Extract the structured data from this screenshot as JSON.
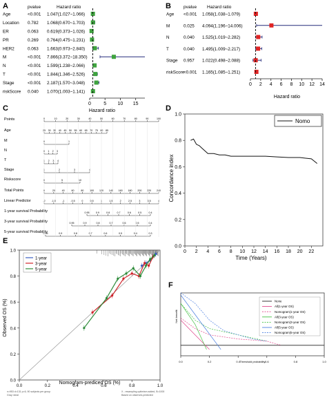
{
  "panels": {
    "A": {
      "letter": "A",
      "col_pvalue": "pvalue",
      "col_hr": "Hazard ratio",
      "rows": [
        {
          "name": "Age",
          "p": "<0.001",
          "hr": "1.047(1.027~1.066)"
        },
        {
          "name": "Location",
          "p": "0.782",
          "hr": "1.068(0.670~1.703)"
        },
        {
          "name": "ER",
          "p": "0.063",
          "hr": "0.619(0.373~1.026)"
        },
        {
          "name": "PR",
          "p": "0.269",
          "hr": "0.764(0.475~1.231)"
        },
        {
          "name": "HER2",
          "p": "0.063",
          "hr": "1.663(0.973~2.840)"
        },
        {
          "name": "M",
          "p": "<0.001",
          "hr": "7.866(3.372~18.350)"
        },
        {
          "name": "N",
          "p": "<0.001",
          "hr": "1.599(1.238~2.066)"
        },
        {
          "name": "T",
          "p": "<0.001",
          "hr": "1.844(1.346~2.526)"
        },
        {
          "name": "Stage",
          "p": "<0.001",
          "hr": "2.187(1.570~3.048)"
        },
        {
          "name": "riskScore",
          "p": "0.040",
          "hr": "1.070(1.003~1.141)"
        }
      ],
      "ticks": [
        "0",
        "5",
        "10",
        "15"
      ],
      "box_color": "#3fa33f"
    },
    "B": {
      "letter": "B",
      "col_pvalue": "pvalue",
      "col_hr": "Hazard ratio",
      "xlabel": "Hazard ratio",
      "rows": [
        {
          "name": "Age",
          "p": "<0.001",
          "hr": "1.058(1.038~1.079)"
        },
        {
          "name": "M",
          "p": "0.025",
          "hr": "4.094(1.196~14.006)"
        },
        {
          "name": "N",
          "p": "0.040",
          "hr": "1.525(1.019~2.282)"
        },
        {
          "name": "T",
          "p": "0.040",
          "hr": "1.495(1.009~2.217)"
        },
        {
          "name": "Stage",
          "p": "0.957",
          "hr": "1.022(0.498~2.088)"
        },
        {
          "name": "riskScore",
          "p": "<0.001",
          "hr": "1.165(1.085~1.251)"
        }
      ],
      "ticks": [
        "0",
        "2",
        "4",
        "6",
        "8",
        "10",
        "12",
        "14"
      ],
      "box_color": "#e02424"
    },
    "C": {
      "letter": "C",
      "title": "Hazard ratio",
      "rows": [
        "Points",
        "Age",
        "M",
        "N",
        "T",
        "Stage",
        "Riskscore",
        "Total Points",
        "Linear Predictor",
        "1-year survival Probability",
        "3-year survival Probability",
        "5-year survival Probability"
      ],
      "points_ticks": [
        "0",
        "10",
        "20",
        "30",
        "40",
        "50",
        "60",
        "70",
        "80",
        "90",
        "100"
      ],
      "age_ticks": [
        "25",
        "30",
        "35",
        "40",
        "45",
        "50",
        "55",
        "60",
        "65",
        "70",
        "75",
        "80",
        "85"
      ],
      "m_ticks": [
        "0",
        "1"
      ],
      "n_ticks": [
        "0",
        "1",
        "2",
        "3"
      ],
      "t_ticks": [
        "1",
        "2",
        "3",
        "4"
      ],
      "stage_ticks": [
        "1",
        "2",
        "3",
        "4"
      ],
      "risk_ticks": [
        "0",
        "5",
        "10"
      ],
      "total_ticks": [
        "0",
        "20",
        "40",
        "60",
        "80",
        "100",
        "120",
        "140",
        "160",
        "180",
        "200",
        "220",
        "240"
      ],
      "lp_ticks": [
        "-2",
        "-1.5",
        "-1",
        "-0.5",
        "0",
        "0.5",
        "1",
        "1.5",
        "2",
        "2.5",
        "3",
        "3.5",
        "4"
      ],
      "y1_ticks": [
        "0.95",
        "0.9",
        "0.8",
        "0.7",
        "0.6",
        "0.5",
        "0.4"
      ],
      "y3_ticks": [
        "0.95",
        "0.9",
        "0.8",
        "0.7",
        "0.6",
        "0.5",
        "0.4"
      ],
      "y5_ticks": [
        "0.95",
        "0.9",
        "0.8",
        "0.7",
        "0.6",
        "0.5",
        "0.4",
        "0.3"
      ]
    },
    "D": {
      "letter": "D",
      "ylabel": "Concordance index",
      "xlabel": "Time (Years)",
      "legend": "Nomo"
    },
    "E": {
      "letter": "E",
      "ylabel": "Observed OS (%)",
      "xlabel": "Nomogram-prediced OS (%)",
      "legend": [
        "1-year",
        "3-year",
        "5-year"
      ],
      "footer_left": "n=953 d=131 p=6, 90 subjects per group",
      "footer_left2": "Gray: ideal",
      "footer_right": "X - resampling optimism added, B=1000",
      "footer_right2": "Based on observed-predicted",
      "colors": [
        "#3b5fc0",
        "#d0232a",
        "#2e8b3a"
      ]
    },
    "F": {
      "letter": "F",
      "ylabel": "Net benefit",
      "xlabel": "Threshold probability",
      "legend": [
        "None",
        "All(1-year OS)",
        "Nomogram(1-year OS)",
        "All(3-year OS)",
        "Nomogram(3-year OS)",
        "All(5-year OS)",
        "Nomogram(5-year OS)"
      ],
      "legend_colors": [
        "#222222",
        "#e0448a",
        "#e0448a",
        "#44c044",
        "#44c044",
        "#4a7ee0",
        "#4a7ee0"
      ]
    }
  },
  "chart_data": [
    {
      "type": "scatter",
      "title": "",
      "xlabel": "",
      "ylabel": "",
      "categories": [
        "Age",
        "Location",
        "ER",
        "PR",
        "HER2",
        "M",
        "N",
        "T",
        "Stage",
        "riskScore"
      ],
      "series": [
        {
          "values": [
            1.047,
            1.068,
            0.619,
            0.764,
            1.663,
            7.866,
            1.599,
            1.844,
            2.187,
            1.07
          ]
        }
      ],
      "lower": [
        1.027,
        0.67,
        0.373,
        0.475,
        0.973,
        3.372,
        1.238,
        1.346,
        1.57,
        1.003
      ],
      "upper": [
        1.066,
        1.703,
        1.026,
        1.231,
        2.84,
        18.35,
        2.066,
        2.526,
        3.048,
        1.141
      ],
      "xlim": [
        0,
        18
      ]
    },
    {
      "type": "scatter",
      "title": "",
      "xlabel": "Hazard ratio",
      "ylabel": "",
      "categories": [
        "Age",
        "M",
        "N",
        "T",
        "Stage",
        "riskScore"
      ],
      "series": [
        {
          "values": [
            1.058,
            4.094,
            1.525,
            1.495,
            1.022,
            1.165
          ]
        }
      ],
      "lower": [
        1.038,
        1.196,
        1.019,
        1.009,
        0.498,
        1.085
      ],
      "upper": [
        1.079,
        14.006,
        2.282,
        2.217,
        2.088,
        1.251
      ],
      "xlim": [
        0,
        14
      ]
    },
    {
      "type": "line",
      "title": "",
      "xlabel": "Time (Years)",
      "ylabel": "Concordance index",
      "xlim": [
        0,
        24
      ],
      "ylim": [
        0,
        1.0
      ],
      "xticks": [
        "0",
        "2",
        "4",
        "6",
        "8",
        "10",
        "12",
        "14",
        "16",
        "18",
        "20",
        "22"
      ],
      "yticks": [
        "0.0",
        "0.2",
        "0.4",
        "0.6",
        "0.8",
        "1.0"
      ],
      "series": [
        {
          "name": "Nomo",
          "x": [
            1,
            1.5,
            2,
            2.5,
            3,
            3.5,
            4,
            5,
            6,
            7,
            8,
            10,
            12,
            14,
            16,
            18,
            20,
            21,
            22,
            23
          ],
          "y": [
            0.8,
            0.81,
            0.77,
            0.76,
            0.74,
            0.72,
            0.7,
            0.7,
            0.69,
            0.69,
            0.68,
            0.68,
            0.68,
            0.68,
            0.675,
            0.67,
            0.67,
            0.665,
            0.66,
            0.625
          ]
        }
      ]
    },
    {
      "type": "line",
      "title": "",
      "xlabel": "Nomogram-prediced OS (%)",
      "ylabel": "Observed OS (%)",
      "xlim": [
        0,
        1.0
      ],
      "ylim": [
        0,
        1.0
      ],
      "xticks": [
        "0.0",
        "0.2",
        "0.4",
        "0.6",
        "0.8",
        "1.0"
      ],
      "yticks": [
        "0.0",
        "0.2",
        "0.4",
        "0.6",
        "0.8",
        "1.0"
      ],
      "series": [
        {
          "name": "1-year",
          "x": [
            0.87,
            0.9,
            0.93,
            0.95,
            0.96,
            0.97
          ],
          "y": [
            0.88,
            0.9,
            0.92,
            0.95,
            0.96,
            0.97
          ]
        },
        {
          "name": "3-year",
          "x": [
            0.52,
            0.66,
            0.74,
            0.8,
            0.85,
            0.89,
            0.92,
            0.95
          ],
          "y": [
            0.52,
            0.65,
            0.78,
            0.82,
            0.8,
            0.9,
            0.88,
            0.95
          ]
        },
        {
          "name": "5-year",
          "x": [
            0.46,
            0.62,
            0.7,
            0.76,
            0.81,
            0.86,
            0.9,
            0.93,
            0.96
          ],
          "y": [
            0.4,
            0.63,
            0.78,
            0.82,
            0.86,
            0.8,
            0.88,
            0.93,
            0.96
          ]
        }
      ]
    },
    {
      "type": "line",
      "title": "",
      "xlabel": "Threshold probability",
      "ylabel": "Net benefit",
      "xlim": [
        0,
        1.0
      ],
      "ylim": [
        -0.05,
        0.25
      ],
      "xticks": [
        "0.0",
        "0.2",
        "0.4",
        "0.6",
        "0.8",
        "1.0"
      ],
      "series": [
        {
          "name": "None",
          "x": [
            0,
            1
          ],
          "y": [
            0,
            0
          ]
        },
        {
          "name": "All(1-year OS)",
          "x": [
            0,
            0.1,
            0.2
          ],
          "y": [
            0.12,
            0.05,
            -0.02
          ]
        },
        {
          "name": "Nomogram(1-year OS)",
          "x": [
            0,
            0.1,
            0.2,
            0.4,
            0.6,
            0.7
          ],
          "y": [
            0.13,
            0.08,
            0.05,
            0.03,
            0.02,
            0.0
          ]
        },
        {
          "name": "All(3-year OS)",
          "x": [
            0,
            0.1,
            0.18
          ],
          "y": [
            0.2,
            0.1,
            -0.02
          ]
        },
        {
          "name": "Nomogram(3-year OS)",
          "x": [
            0,
            0.1,
            0.2,
            0.4,
            0.6
          ],
          "y": [
            0.2,
            0.12,
            0.08,
            0.05,
            0.02
          ]
        },
        {
          "name": "All(5-year OS)",
          "x": [
            0,
            0.15,
            0.28
          ],
          "y": [
            0.24,
            0.1,
            -0.02
          ]
        },
        {
          "name": "Nomogram(5-year OS)",
          "x": [
            0,
            0.1,
            0.2,
            0.3,
            0.4,
            0.5,
            0.6
          ],
          "y": [
            0.25,
            0.2,
            0.12,
            0.07,
            0.05,
            0.03,
            0.02
          ]
        }
      ]
    }
  ]
}
